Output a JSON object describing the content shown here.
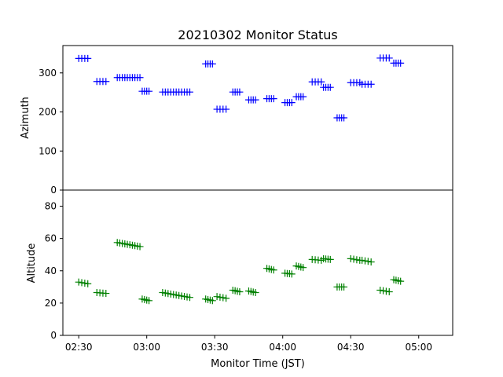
{
  "chart_data": {
    "type": "scatter",
    "title": "20210302 Monitor Status",
    "xlabel": "Monitor Time (JST)",
    "x_ticks": [
      "02:30",
      "03:00",
      "03:30",
      "04:00",
      "04:30",
      "05:00"
    ],
    "x_tick_minutes": [
      150,
      180,
      210,
      240,
      270,
      300
    ],
    "xlim_minutes": [
      143,
      315
    ],
    "panels": [
      {
        "name": "azimuth-panel",
        "ylabel": "Azimuth",
        "ylim": [
          0,
          370
        ],
        "yticks": [
          0,
          100,
          200,
          300
        ],
        "color": "#0000ff",
        "groups": [
          {
            "start": 150,
            "end": 154,
            "value": 337,
            "count": 4
          },
          {
            "start": 158,
            "end": 162,
            "value": 278,
            "count": 4
          },
          {
            "start": 167,
            "end": 177,
            "value": 288,
            "count": 10
          },
          {
            "start": 178,
            "end": 181,
            "value": 253,
            "count": 4
          },
          {
            "start": 187,
            "end": 199,
            "value": 251,
            "count": 11
          },
          {
            "start": 206,
            "end": 209,
            "value": 323,
            "count": 4
          },
          {
            "start": 211,
            "end": 215,
            "value": 207,
            "count": 4
          },
          {
            "start": 218,
            "end": 221,
            "value": 251,
            "count": 4
          },
          {
            "start": 225,
            "end": 228,
            "value": 231,
            "count": 4
          },
          {
            "start": 233,
            "end": 236,
            "value": 234,
            "count": 4
          },
          {
            "start": 241,
            "end": 244,
            "value": 224,
            "count": 4
          },
          {
            "start": 246,
            "end": 249,
            "value": 239,
            "count": 4
          },
          {
            "start": 253,
            "end": 257,
            "value": 277,
            "count": 4
          },
          {
            "start": 258,
            "end": 261,
            "value": 263,
            "count": 4
          },
          {
            "start": 264,
            "end": 267,
            "value": 185,
            "count": 4
          },
          {
            "start": 270,
            "end": 274,
            "value": 275,
            "count": 4
          },
          {
            "start": 275,
            "end": 279,
            "value": 271,
            "count": 4
          },
          {
            "start": 283,
            "end": 287,
            "value": 338,
            "count": 4
          },
          {
            "start": 289,
            "end": 292,
            "value": 325,
            "count": 4
          }
        ]
      },
      {
        "name": "altitude-panel",
        "ylabel": "Altitude",
        "ylim": [
          0,
          90
        ],
        "yticks": [
          0,
          20,
          40,
          60,
          80
        ],
        "color": "#008000",
        "groups": [
          {
            "start": 150,
            "end": 154,
            "value": 33,
            "decline": 1,
            "count": 4
          },
          {
            "start": 158,
            "end": 162,
            "value": 26.5,
            "decline": 0.5,
            "count": 4
          },
          {
            "start": 167,
            "end": 177,
            "value": 57.5,
            "decline": 2.5,
            "count": 10
          },
          {
            "start": 178,
            "end": 181,
            "value": 22.5,
            "decline": 1,
            "count": 4
          },
          {
            "start": 187,
            "end": 199,
            "value": 26.5,
            "decline": 3,
            "count": 11
          },
          {
            "start": 206,
            "end": 209,
            "value": 22.5,
            "decline": 1,
            "count": 4
          },
          {
            "start": 211,
            "end": 215,
            "value": 24,
            "decline": 1,
            "count": 4
          },
          {
            "start": 218,
            "end": 221,
            "value": 28,
            "decline": 1,
            "count": 4
          },
          {
            "start": 225,
            "end": 228,
            "value": 27.5,
            "decline": 1,
            "count": 4
          },
          {
            "start": 233,
            "end": 236,
            "value": 41.5,
            "decline": 1,
            "count": 4
          },
          {
            "start": 241,
            "end": 244,
            "value": 38.5,
            "decline": 0.5,
            "count": 4
          },
          {
            "start": 246,
            "end": 249,
            "value": 43,
            "decline": 1,
            "count": 4
          },
          {
            "start": 253,
            "end": 257,
            "value": 47,
            "decline": 0.5,
            "count": 4
          },
          {
            "start": 258,
            "end": 261,
            "value": 47.5,
            "decline": 0.5,
            "count": 4
          },
          {
            "start": 264,
            "end": 267,
            "value": 30,
            "decline": 0,
            "count": 4
          },
          {
            "start": 270,
            "end": 274,
            "value": 47.5,
            "decline": 1,
            "count": 4
          },
          {
            "start": 275,
            "end": 279,
            "value": 46.5,
            "decline": 1,
            "count": 4
          },
          {
            "start": 283,
            "end": 287,
            "value": 28,
            "decline": 1,
            "count": 4
          },
          {
            "start": 289,
            "end": 292,
            "value": 34.5,
            "decline": 1,
            "count": 4
          }
        ]
      }
    ]
  }
}
